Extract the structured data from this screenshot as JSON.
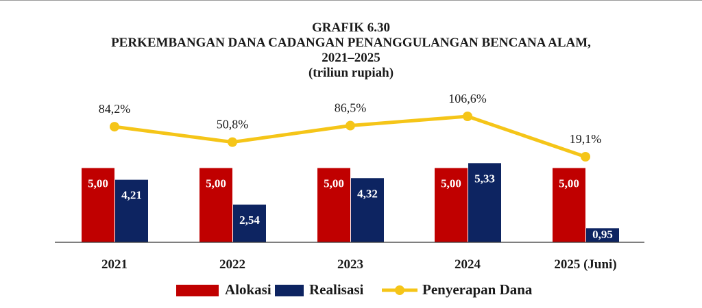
{
  "chart_data": {
    "type": "bar",
    "title": [
      "GRAFIK 6.30",
      "PERKEMBANGAN DANA CADANGAN PENANGGULANGAN BENCANA ALAM,",
      "2021–2025"
    ],
    "subtitle": "(triliun rupiah)",
    "categories": [
      "2021",
      "2022",
      "2023",
      "2024",
      "2025 (Juni)"
    ],
    "series": [
      {
        "name": "Alokasi",
        "type": "bar",
        "values": [
          5.0,
          5.0,
          5.0,
          5.0,
          5.0
        ],
        "labels": [
          "5,00",
          "5,00",
          "5,00",
          "5,00",
          "5,00"
        ],
        "color": "#c00000"
      },
      {
        "name": "Realisasi",
        "type": "bar",
        "values": [
          4.21,
          2.54,
          4.32,
          5.33,
          0.95
        ],
        "labels": [
          "4,21",
          "2,54",
          "4,32",
          "5,33",
          "0,95"
        ],
        "color": "#0d2461"
      },
      {
        "name": "Penyerapan Dana",
        "type": "line",
        "values": [
          84.2,
          50.8,
          86.5,
          106.6,
          19.1
        ],
        "labels": [
          "84,2%",
          "50,8%",
          "86,5%",
          "106,6%",
          "19,1%"
        ],
        "color": "#f5c518"
      }
    ],
    "legend_position": "bottom",
    "grid": false
  }
}
